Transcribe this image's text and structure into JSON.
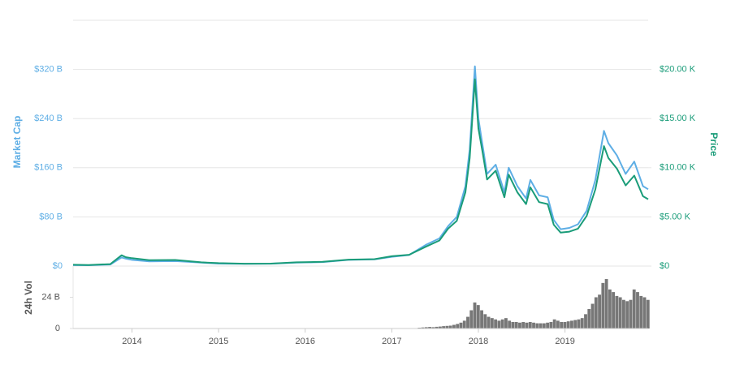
{
  "chart_data": [
    {
      "type": "line",
      "xlim": [
        2013.32,
        2019.96
      ],
      "x": [
        2013.32,
        2013.5,
        2013.75,
        2013.88,
        2013.93,
        2014.0,
        2014.2,
        2014.5,
        2014.8,
        2015.0,
        2015.3,
        2015.6,
        2015.9,
        2016.2,
        2016.5,
        2016.8,
        2017.0,
        2017.2,
        2017.4,
        2017.55,
        2017.65,
        2017.75,
        2017.85,
        2017.9,
        2017.96,
        2018.0,
        2018.05,
        2018.1,
        2018.2,
        2018.3,
        2018.35,
        2018.45,
        2018.55,
        2018.6,
        2018.7,
        2018.8,
        2018.87,
        2018.95,
        2019.05,
        2019.15,
        2019.25,
        2019.35,
        2019.45,
        2019.5,
        2019.6,
        2019.7,
        2019.8,
        2019.9,
        2019.96
      ],
      "series": [
        {
          "name": "Market Cap",
          "axis": "y",
          "color": "#5eaee5",
          "values": [
            1.5,
            1.3,
            2.5,
            14,
            12,
            10,
            7.5,
            8,
            5.5,
            4,
            3.5,
            3.8,
            5.5,
            6.5,
            10,
            11,
            15,
            18,
            35,
            45,
            65,
            80,
            130,
            190,
            325,
            240,
            195,
            150,
            165,
            120,
            160,
            130,
            110,
            140,
            115,
            112,
            75,
            60,
            62,
            68,
            90,
            140,
            220,
            200,
            180,
            150,
            170,
            130,
            125
          ]
        },
        {
          "name": "Price",
          "axis": "y2",
          "color": "#1a9c79",
          "values": [
            130,
            110,
            200,
            1100,
            900,
            800,
            600,
            620,
            380,
            300,
            240,
            250,
            380,
            430,
            650,
            700,
            1000,
            1150,
            2000,
            2600,
            3800,
            4600,
            7500,
            11000,
            19000,
            14000,
            11500,
            8800,
            9700,
            7000,
            9300,
            7500,
            6300,
            8000,
            6500,
            6300,
            4200,
            3400,
            3500,
            3800,
            5100,
            7800,
            12200,
            11000,
            9900,
            8200,
            9200,
            7100,
            6800
          ]
        }
      ],
      "ylim": [
        0,
        400
      ],
      "yticks": [
        {
          "value": 0,
          "label": "$0"
        },
        {
          "value": 80,
          "label": "$80 B"
        },
        {
          "value": 160,
          "label": "$160 B"
        },
        {
          "value": 240,
          "label": "$240 B"
        },
        {
          "value": 320,
          "label": "$320 B"
        }
      ],
      "y2lim": [
        0,
        25000
      ],
      "y2ticks": [
        {
          "value": 0,
          "label": "$0"
        },
        {
          "value": 5000,
          "label": "$5.00 K"
        },
        {
          "value": 10000,
          "label": "$10.00 K"
        },
        {
          "value": 15000,
          "label": "$15.00 K"
        },
        {
          "value": 20000,
          "label": "$20.00 K"
        }
      ],
      "grid": true
    },
    {
      "type": "bar",
      "ylabel": "24h Vol",
      "color": "#777777",
      "xlim": [
        2013.32,
        2019.96
      ],
      "xticks": [
        2014,
        2015,
        2016,
        2017,
        2018,
        2019
      ],
      "ylim": [
        0,
        48
      ],
      "yticks": [
        0,
        {
          "value": 24,
          "label": "24 B"
        }
      ],
      "x": [
        2017.32,
        2017.36,
        2017.4,
        2017.44,
        2017.48,
        2017.52,
        2017.56,
        2017.6,
        2017.64,
        2017.68,
        2017.72,
        2017.76,
        2017.8,
        2017.84,
        2017.88,
        2017.92,
        2017.96,
        2018.0,
        2018.04,
        2018.08,
        2018.12,
        2018.16,
        2018.2,
        2018.24,
        2018.28,
        2018.32,
        2018.36,
        2018.4,
        2018.44,
        2018.48,
        2018.52,
        2018.56,
        2018.6,
        2018.64,
        2018.68,
        2018.72,
        2018.76,
        2018.8,
        2018.84,
        2018.88,
        2018.92,
        2018.96,
        2019.0,
        2019.04,
        2019.08,
        2019.12,
        2019.16,
        2019.2,
        2019.24,
        2019.28,
        2019.32,
        2019.36,
        2019.4,
        2019.44,
        2019.48,
        2019.52,
        2019.56,
        2019.6,
        2019.64,
        2019.68,
        2019.72,
        2019.76,
        2019.8,
        2019.84,
        2019.88,
        2019.92,
        2019.96
      ],
      "values": [
        0.6,
        0.8,
        1.0,
        1.2,
        1.0,
        1.3,
        1.5,
        1.8,
        2.0,
        2.2,
        2.8,
        3.5,
        4.5,
        6,
        9,
        14,
        20,
        18,
        14,
        11,
        9,
        8,
        7,
        6,
        7,
        8,
        6,
        5,
        5,
        4.5,
        5,
        4.5,
        5,
        4.5,
        4,
        4,
        4,
        4.5,
        5,
        7,
        6,
        5,
        5,
        5.5,
        6,
        6.5,
        7,
        8,
        11,
        15,
        19,
        24,
        26,
        35,
        38,
        30,
        28,
        25,
        24,
        22,
        21,
        22,
        30,
        28,
        25,
        24,
        22
      ]
    }
  ]
}
